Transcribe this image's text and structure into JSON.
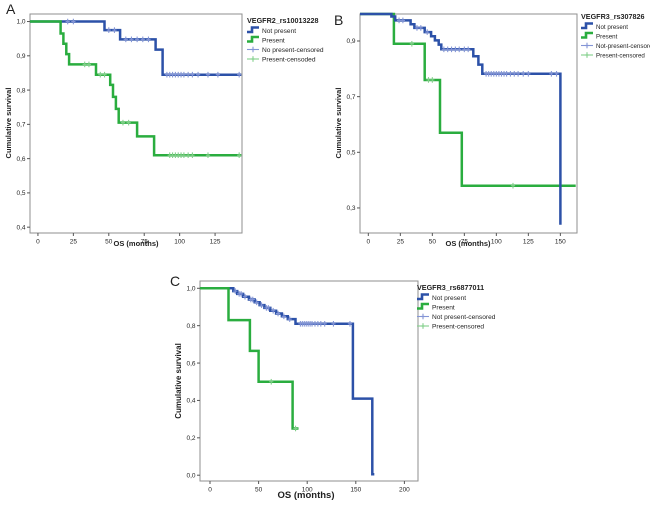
{
  "figure": {
    "description": "Kaplan-Meier overall survival curves for three VEGFR polymorphisms",
    "background": "#ffffff",
    "colors": {
      "not_present": "#2c51a8",
      "present": "#2aad3f",
      "not_present_censor": "#8495d6",
      "present_censor": "#82cf8a",
      "frame": "#8f8f8f",
      "tick": "#555555",
      "text": "#1f1f1f"
    }
  },
  "chart_data": [
    {
      "type": "line",
      "subtype": "kaplan-meier-step",
      "panel": "A",
      "legend_title": "VEGFR2_rs10013228",
      "xlabel": "OS (months)",
      "ylabel": "Cumulative survival",
      "xlim": [
        -5.6,
        144
      ],
      "ylim": [
        0.383,
        1.022
      ],
      "grid": false,
      "legend_position": "right-top",
      "xticks": [
        {
          "v": 0,
          "label": "0"
        },
        {
          "v": 25,
          "label": "25"
        },
        {
          "v": 50,
          "label": "50"
        },
        {
          "v": 75,
          "label": "75"
        },
        {
          "v": 100,
          "label": "100"
        },
        {
          "v": 125,
          "label": "125"
        }
      ],
      "yticks": [
        {
          "v": 1.0,
          "label": "1,0"
        },
        {
          "v": 0.9,
          "label": "0,9"
        },
        {
          "v": 0.8,
          "label": "0,8"
        },
        {
          "v": 0.7,
          "label": "0,7"
        },
        {
          "v": 0.6,
          "label": "0,6"
        },
        {
          "v": 0.5,
          "label": "0,5"
        },
        {
          "v": 0.4,
          "label": "0,4"
        }
      ],
      "legend": [
        {
          "label": "Not present",
          "swatch": "line",
          "color_key": "not_present"
        },
        {
          "label": "Present",
          "swatch": "line",
          "color_key": "present"
        },
        {
          "label": "No present-censored",
          "swatch": "censor",
          "color_key": "not_present_censor"
        },
        {
          "label": "Present-censoded",
          "swatch": "censor",
          "color_key": "present_censor"
        }
      ],
      "series": [
        {
          "name": "Not present",
          "color_key": "not_present",
          "censor_color_key": "not_present_censor",
          "start": 1.0,
          "end_x": 143.5,
          "drops": [
            [
              47,
              0.975
            ],
            [
              58,
              0.948
            ],
            [
              83,
              0.918
            ],
            [
              88,
              0.845
            ]
          ],
          "censors": [
            [
              21,
              1.0
            ],
            [
              25,
              1.0
            ],
            [
              50,
              0.975
            ],
            [
              54,
              0.975
            ],
            [
              62,
              0.948
            ],
            [
              66,
              0.948
            ],
            [
              70,
              0.948
            ],
            [
              74,
              0.948
            ],
            [
              78,
              0.948
            ],
            [
              91,
              0.845
            ],
            [
              93,
              0.845
            ],
            [
              95,
              0.845
            ],
            [
              97,
              0.845
            ],
            [
              99,
              0.845
            ],
            [
              101,
              0.845
            ],
            [
              103,
              0.845
            ],
            [
              106,
              0.845
            ],
            [
              109,
              0.845
            ],
            [
              113,
              0.845
            ],
            [
              120,
              0.845
            ],
            [
              127,
              0.845
            ],
            [
              142,
              0.845
            ]
          ]
        },
        {
          "name": "Present",
          "color_key": "present",
          "censor_color_key": "present_censor",
          "start": 1.0,
          "end_x": 143.5,
          "drops": [
            [
              16,
              0.965
            ],
            [
              18,
              0.935
            ],
            [
              20,
              0.905
            ],
            [
              22,
              0.875
            ],
            [
              41,
              0.845
            ],
            [
              51,
              0.815
            ],
            [
              53,
              0.78
            ],
            [
              55,
              0.745
            ],
            [
              57,
              0.705
            ],
            [
              70,
              0.665
            ],
            [
              82,
              0.61
            ]
          ],
          "censors": [
            [
              33,
              0.875
            ],
            [
              36,
              0.875
            ],
            [
              44,
              0.845
            ],
            [
              47,
              0.845
            ],
            [
              60,
              0.705
            ],
            [
              64,
              0.705
            ],
            [
              93,
              0.61
            ],
            [
              95,
              0.61
            ],
            [
              97,
              0.61
            ],
            [
              99,
              0.61
            ],
            [
              101,
              0.61
            ],
            [
              103,
              0.61
            ],
            [
              106,
              0.61
            ],
            [
              109,
              0.61
            ],
            [
              120,
              0.61
            ],
            [
              142,
              0.61
            ]
          ]
        }
      ]
    },
    {
      "type": "line",
      "subtype": "kaplan-meier-step",
      "panel": "B",
      "legend_title": "VEGFR3_rs307826",
      "xlabel": "OS (months)",
      "ylabel": "Cumulative survival",
      "xlim": [
        -6.5,
        163
      ],
      "ylim": [
        0.21,
        0.997
      ],
      "grid": false,
      "legend_position": "right-top",
      "xticks": [
        {
          "v": 0,
          "label": "0"
        },
        {
          "v": 25,
          "label": "25"
        },
        {
          "v": 50,
          "label": "50"
        },
        {
          "v": 75,
          "label": "75"
        },
        {
          "v": 100,
          "label": "100"
        },
        {
          "v": 125,
          "label": "125"
        },
        {
          "v": 150,
          "label": "150"
        }
      ],
      "yticks": [
        {
          "v": 0.9,
          "label": "0,9"
        },
        {
          "v": 0.7,
          "label": "0,7"
        },
        {
          "v": 0.5,
          "label": "0,5"
        },
        {
          "v": 0.3,
          "label": "0,3"
        }
      ],
      "legend": [
        {
          "label": "Not present",
          "swatch": "line",
          "color_key": "not_present"
        },
        {
          "label": "Present",
          "swatch": "line",
          "color_key": "present"
        },
        {
          "label": "Not-present-censored",
          "swatch": "censor",
          "color_key": "not_present_censor"
        },
        {
          "label": "Present-censored",
          "swatch": "censor",
          "color_key": "present_censor"
        }
      ],
      "series": [
        {
          "name": "Present",
          "color_key": "present",
          "censor_color_key": "present_censor",
          "start": 0.997,
          "end_x": 162,
          "drops": [
            [
              20,
              0.89
            ],
            [
              44,
              0.76
            ],
            [
              56,
              0.57
            ],
            [
              73,
              0.38
            ]
          ],
          "censors": [
            [
              34,
              0.89
            ],
            [
              47,
              0.76
            ],
            [
              50,
              0.76
            ],
            [
              113,
              0.38
            ]
          ]
        },
        {
          "name": "Not present",
          "color_key": "not_present",
          "censor_color_key": "not_present_censor",
          "start": 0.997,
          "end_x": 150,
          "drops": [
            [
              18,
              0.988
            ],
            [
              21,
              0.974
            ],
            [
              33,
              0.96
            ],
            [
              36,
              0.947
            ],
            [
              44,
              0.932
            ],
            [
              49,
              0.917
            ],
            [
              52,
              0.902
            ],
            [
              55,
              0.887
            ],
            [
              57,
              0.87
            ],
            [
              82,
              0.845
            ],
            [
              86,
              0.815
            ],
            [
              89,
              0.782
            ],
            [
              150,
              0.24
            ]
          ],
          "censors": [
            [
              24,
              0.974
            ],
            [
              27,
              0.974
            ],
            [
              38,
              0.947
            ],
            [
              41,
              0.947
            ],
            [
              46,
              0.932
            ],
            [
              59,
              0.87
            ],
            [
              62,
              0.87
            ],
            [
              65,
              0.87
            ],
            [
              68,
              0.87
            ],
            [
              71,
              0.87
            ],
            [
              75,
              0.87
            ],
            [
              78,
              0.87
            ],
            [
              92,
              0.782
            ],
            [
              94,
              0.782
            ],
            [
              96,
              0.782
            ],
            [
              98,
              0.782
            ],
            [
              100,
              0.782
            ],
            [
              102,
              0.782
            ],
            [
              104,
              0.782
            ],
            [
              106,
              0.782
            ],
            [
              108,
              0.782
            ],
            [
              111,
              0.782
            ],
            [
              114,
              0.782
            ],
            [
              117,
              0.782
            ],
            [
              121,
              0.782
            ],
            [
              125,
              0.782
            ],
            [
              143,
              0.782
            ],
            [
              147,
              0.782
            ]
          ]
        }
      ]
    },
    {
      "type": "line",
      "subtype": "kaplan-meier-step",
      "panel": "C",
      "legend_title": "VEGFR3_rs6877011",
      "xlabel": "OS (months)",
      "ylabel": "Cumulative survival",
      "xlim": [
        -10.3,
        214
      ],
      "ylim": [
        -0.031,
        1.039
      ],
      "grid": false,
      "legend_position": "right-top",
      "xticks": [
        {
          "v": 0,
          "label": "0"
        },
        {
          "v": 50,
          "label": "50"
        },
        {
          "v": 100,
          "label": "100"
        },
        {
          "v": 150,
          "label": "150"
        },
        {
          "v": 200,
          "label": "200"
        }
      ],
      "yticks": [
        {
          "v": 1.0,
          "label": "1,0"
        },
        {
          "v": 0.8,
          "label": "0,8"
        },
        {
          "v": 0.6,
          "label": "0,6"
        },
        {
          "v": 0.4,
          "label": "0,4"
        },
        {
          "v": 0.2,
          "label": "0,2"
        },
        {
          "v": 0.0,
          "label": "0,0"
        }
      ],
      "legend": [
        {
          "label": "Not present",
          "swatch": "line",
          "color_key": "not_present"
        },
        {
          "label": "Present",
          "swatch": "line",
          "color_key": "present"
        },
        {
          "label": "Not present-censored",
          "swatch": "censor",
          "color_key": "not_present_censor"
        },
        {
          "label": "Present-censored",
          "swatch": "censor",
          "color_key": "present_censor"
        }
      ],
      "series": [
        {
          "name": "Not present",
          "color_key": "not_present",
          "censor_color_key": "not_present_censor",
          "start": 1.0,
          "end_x": 169,
          "drops": [
            [
              24,
              0.985
            ],
            [
              28,
              0.97
            ],
            [
              34,
              0.955
            ],
            [
              40,
              0.94
            ],
            [
              46,
              0.925
            ],
            [
              51,
              0.91
            ],
            [
              56,
              0.895
            ],
            [
              62,
              0.88
            ],
            [
              68,
              0.865
            ],
            [
              74,
              0.85
            ],
            [
              80,
              0.835
            ],
            [
              88,
              0.81
            ],
            [
              147,
              0.41
            ],
            [
              167,
              0.005
            ]
          ],
          "censors": [
            [
              26,
              0.985
            ],
            [
              30,
              0.97
            ],
            [
              32,
              0.97
            ],
            [
              36,
              0.955
            ],
            [
              42,
              0.94
            ],
            [
              44,
              0.94
            ],
            [
              48,
              0.925
            ],
            [
              53,
              0.91
            ],
            [
              58,
              0.895
            ],
            [
              60,
              0.895
            ],
            [
              65,
              0.88
            ],
            [
              70,
              0.865
            ],
            [
              76,
              0.85
            ],
            [
              82,
              0.835
            ],
            [
              93,
              0.81
            ],
            [
              95,
              0.81
            ],
            [
              97,
              0.81
            ],
            [
              99,
              0.81
            ],
            [
              101,
              0.81
            ],
            [
              103,
              0.81
            ],
            [
              105,
              0.81
            ],
            [
              108,
              0.81
            ],
            [
              111,
              0.81
            ],
            [
              114,
              0.81
            ],
            [
              118,
              0.81
            ],
            [
              127,
              0.81
            ],
            [
              144,
              0.81
            ]
          ]
        },
        {
          "name": "Present",
          "color_key": "present",
          "censor_color_key": "present_censor",
          "start": 1.0,
          "end_x": 91,
          "drops": [
            [
              19,
              0.83
            ],
            [
              41,
              0.665
            ],
            [
              50,
              0.5
            ],
            [
              85,
              0.25
            ]
          ],
          "censors": [
            [
              63,
              0.5
            ],
            [
              88,
              0.25
            ]
          ]
        }
      ]
    }
  ]
}
